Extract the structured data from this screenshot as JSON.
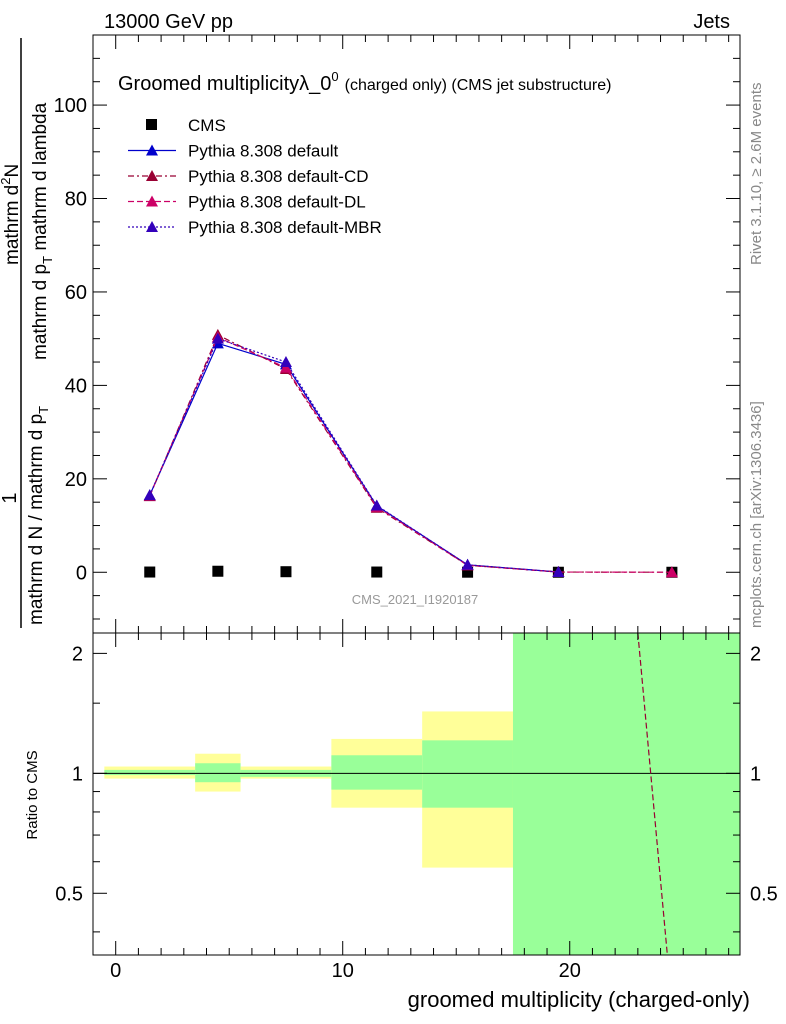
{
  "header": {
    "energy_label": "13000 GeV pp",
    "category_label": "Jets"
  },
  "side_labels": {
    "rivet": "Rivet 3.1.10, ≥ 2.6M events",
    "site": "mcplots.cern.ch [arXiv:1306.3436]"
  },
  "watermark": "CMS_2021_I1920187",
  "chart_data": [
    {
      "type": "line",
      "title_main": "Groomed multiplicityλ_0",
      "title_sup": "0",
      "title_note": "(charged only) (CMS jet substructure)",
      "ylabel_num": "mathrm d",
      "ylabel_num_sup": "2",
      "ylabel_num_tail": "N",
      "ylabel_den": "mathrm d p",
      "ylabel_den_sub": "T",
      "ylabel_den_tail": " mathrm d lambda",
      "ylabel_pre_one": "1",
      "ylabel_pre_den": "mathrm d N / mathrm d p",
      "ylabel_pre_den_sub": "T",
      "xlim": [
        -1,
        27.5
      ],
      "ylim": [
        -13,
        115
      ],
      "yticks": [
        0,
        20,
        40,
        60,
        80,
        100
      ],
      "ytick_labels": [
        "0",
        "20",
        "40",
        "60",
        "80",
        "100"
      ],
      "xticks": [
        0,
        10,
        20
      ],
      "xtick_labels": [
        "0",
        "10",
        "20"
      ],
      "legend_position": "top-left",
      "series": [
        {
          "name": "CMS",
          "marker": "square",
          "color": "#000000",
          "dash": "none",
          "x": [
            1.5,
            4.5,
            7.5,
            11.5,
            15.5,
            19.5,
            24.5
          ],
          "values": [
            0.05,
            0.22,
            0.12,
            0.05,
            0.015,
            0.004,
            0.001
          ]
        },
        {
          "name": "Pythia 8.308 default",
          "marker": "triangle",
          "color": "#0000cc",
          "dash": "solid",
          "x": [
            1.5,
            4.5,
            7.5,
            11.5,
            15.5,
            19.5
          ],
          "values": [
            16.5,
            49.0,
            44.5,
            14.2,
            1.6,
            0.05
          ]
        },
        {
          "name": "Pythia 8.308 default-CD",
          "marker": "triangle",
          "color": "#990033",
          "dash": "6,3,2,3",
          "x": [
            1.5,
            4.5,
            7.5,
            11.5,
            15.5,
            19.5,
            24.5
          ],
          "values": [
            16.3,
            50.8,
            43.5,
            13.8,
            1.5,
            0.05,
            0.01
          ]
        },
        {
          "name": "Pythia 8.308 default-DL",
          "marker": "triangle",
          "color": "#cc0066",
          "dash": "6,3",
          "x": [
            1.5,
            4.5,
            7.5,
            11.5,
            15.5,
            19.5,
            24.5
          ],
          "values": [
            16.4,
            50.3,
            43.8,
            14.0,
            1.5,
            0.05,
            0.01
          ]
        },
        {
          "name": "Pythia 8.308 default-MBR",
          "marker": "triangle",
          "color": "#3300bb",
          "dash": "2,2",
          "x": [
            1.5,
            4.5,
            7.5,
            11.5,
            15.5,
            19.5
          ],
          "values": [
            16.5,
            50.0,
            45.0,
            14.3,
            1.6,
            0.05
          ]
        }
      ]
    },
    {
      "type": "area",
      "ylabel": "Ratio to CMS",
      "xlabel": "groomed multiplicity (charged-only)",
      "xlim": [
        -1,
        27.5
      ],
      "ylim": [
        0.35,
        2.25
      ],
      "yticks": [
        0.5,
        1,
        2
      ],
      "ytick_labels": [
        "0.5",
        "1",
        "2"
      ],
      "xticks": [
        0,
        10,
        20
      ],
      "xtick_labels": [
        "0",
        "10",
        "20"
      ],
      "bins": [
        {
          "x0": -0.5,
          "x1": 3.5,
          "stat_lo": 0.99,
          "stat_hi": 1.02,
          "tot_lo": 0.97,
          "tot_hi": 1.04
        },
        {
          "x0": 3.5,
          "x1": 5.5,
          "stat_lo": 0.95,
          "stat_hi": 1.06,
          "tot_lo": 0.9,
          "tot_hi": 1.12
        },
        {
          "x0": 5.5,
          "x1": 9.5,
          "stat_lo": 0.98,
          "stat_hi": 1.02,
          "tot_lo": 0.97,
          "tot_hi": 1.04
        },
        {
          "x0": 9.5,
          "x1": 13.5,
          "stat_lo": 0.91,
          "stat_hi": 1.11,
          "tot_lo": 0.82,
          "tot_hi": 1.22
        },
        {
          "x0": 13.5,
          "x1": 17.5,
          "stat_lo": 0.82,
          "stat_hi": 1.21,
          "tot_lo": 0.58,
          "tot_hi": 1.43
        },
        {
          "x0": 17.5,
          "x1": 27.5,
          "stat_lo": 0.35,
          "stat_hi": 2.25,
          "tot_lo": 0.35,
          "tot_hi": 2.25
        }
      ],
      "reference_line": 1,
      "series": [
        {
          "name": "Pythia 8.308 default-DL",
          "color": "#990033",
          "dash": "6,3",
          "points": [
            [
              23.0,
              2.25
            ],
            [
              24.3,
              0.35
            ]
          ]
        }
      ]
    }
  ]
}
